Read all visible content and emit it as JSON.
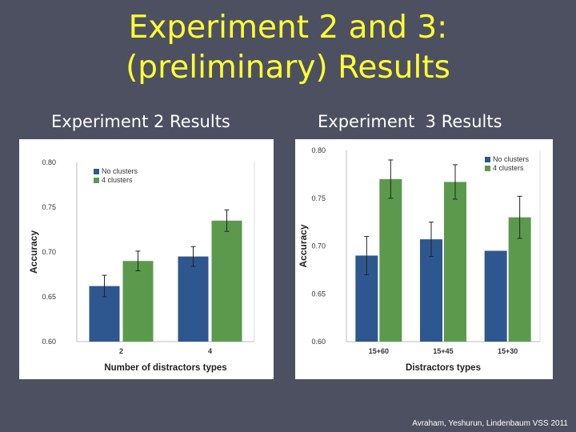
{
  "slide": {
    "title_line1": "Experiment 2 and 3:",
    "title_line2": "(preliminary) Results",
    "left_heading": "Experiment 2 Results",
    "right_heading": "Experiment  3 Results",
    "credit": "Avraham, Yeshurun, Lindenbaum VSS 2011"
  },
  "colors": {
    "background": "#4d5061",
    "title": "#ffff33",
    "series_blue": "#2f578f",
    "series_green": "#5b9a4c"
  },
  "chart_data": [
    {
      "type": "bar",
      "categories": [
        "2",
        "4"
      ],
      "xlabel": "Number of distractors types",
      "ylabel": "Accuracy",
      "ylim": [
        0.6,
        0.8
      ],
      "yticks": [
        "0.60",
        "0.65",
        "0.70",
        "0.75",
        "0.80"
      ],
      "legend_position": "top-left",
      "series": [
        {
          "name": "No clusters",
          "color": "#2f578f",
          "values": [
            0.662,
            0.695
          ],
          "errors": [
            0.012,
            0.011
          ]
        },
        {
          "name": "4 clusters",
          "color": "#5b9a4c",
          "values": [
            0.69,
            0.735
          ],
          "errors": [
            0.011,
            0.012
          ]
        }
      ]
    },
    {
      "type": "bar",
      "categories": [
        "15+60",
        "15+45",
        "15+30"
      ],
      "xlabel": "Distractors types",
      "ylabel": "Accuracy",
      "ylim": [
        0.6,
        0.8
      ],
      "yticks": [
        "0.60",
        "0.65",
        "0.70",
        "0.75",
        "0.80"
      ],
      "legend_position": "top-right",
      "series": [
        {
          "name": "No clusters",
          "color": "#2f578f",
          "values": [
            0.69,
            0.707,
            0.695
          ],
          "errors": [
            0.02,
            0.018,
            0
          ]
        },
        {
          "name": "4 clusters",
          "color": "#5b9a4c",
          "values": [
            0.77,
            0.767,
            0.73
          ],
          "errors": [
            0.02,
            0.018,
            0.022
          ]
        }
      ]
    }
  ]
}
